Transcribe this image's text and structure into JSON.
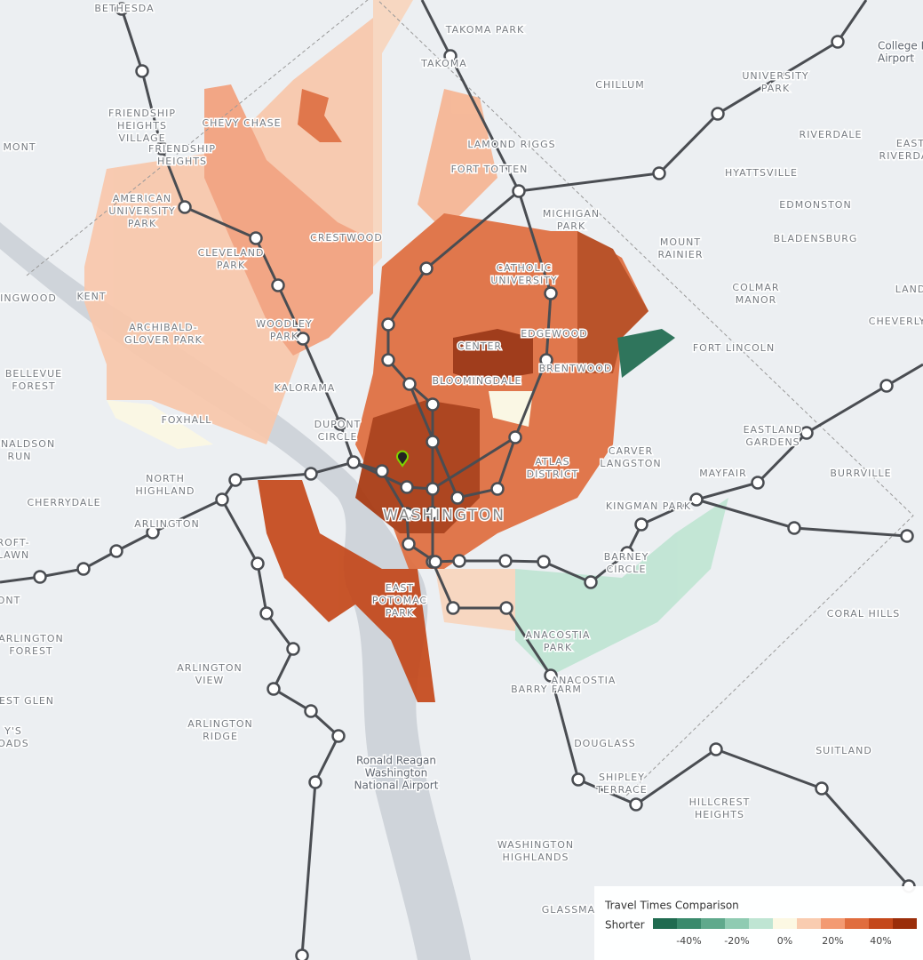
{
  "places": [
    [
      "BETHESDA"
    ],
    [
      "TAKOMA PARK"
    ],
    [
      "TAKOMA"
    ],
    [
      "CHILLUM"
    ],
    [
      "UNIVERSITY",
      "PARK"
    ],
    [
      "College Park",
      "Airport"
    ],
    [
      "FRIENDSHIP",
      "HEIGHTS",
      "VILLAGE"
    ],
    [
      "FRIENDSHIP",
      "HEIGHTS"
    ],
    [
      "CHEVY CHASE"
    ],
    [
      "LAMOND RIGGS"
    ],
    [
      "RIVERDALE"
    ],
    [
      "EAST",
      "RIVERDALE"
    ],
    [
      "MONT"
    ],
    [
      "FORT TOTTEN"
    ],
    [
      "HYATTSVILLE"
    ],
    [
      "AMERICAN",
      "UNIVERSITY",
      "PARK"
    ],
    [
      "MICHIGAN",
      "PARK"
    ],
    [
      "EDMONSTON"
    ],
    [
      "CRESTWOOD"
    ],
    [
      "BLADENSBURG"
    ],
    [
      "MOUNT",
      "RAINIER"
    ],
    [
      "CLEVELAND",
      "PARK"
    ],
    [
      "CATHOLIC",
      "UNIVERSITY"
    ],
    [
      "KENT"
    ],
    [
      "INGWOOD"
    ],
    [
      "COLMAR",
      "MANOR"
    ],
    [
      "LAND"
    ],
    [
      "ARCHIBALD-",
      "GLOVER PARK"
    ],
    [
      "WOODLEY",
      "PARK"
    ],
    [
      "EDGEWOOD"
    ],
    [
      "CHEVERLY"
    ],
    [
      "FORT LINCOLN"
    ],
    [
      "CENTER"
    ],
    [
      "BRENTWOOD"
    ],
    [
      "BELLEVUE",
      "FOREST"
    ],
    [
      "BLOOMINGDALE"
    ],
    [
      "KALORAMA"
    ],
    [
      "FOXHALL"
    ],
    [
      "DUPONT",
      "CIRCLE"
    ],
    [
      "EASTLAND",
      "GARDENS"
    ],
    [
      "DONALDSON",
      "RUN"
    ],
    [
      "CARVER",
      "LANGSTON"
    ],
    [
      "ATLAS",
      "DISTRICT"
    ],
    [
      "NORTH",
      "HIGHLAND"
    ],
    [
      "MAYFAIR"
    ],
    [
      "BURRVILLE"
    ],
    [
      "CHERRYDALE"
    ],
    [
      "KINGMAN PARK"
    ],
    [
      "WASHINGTON"
    ],
    [
      "ARLINGTON"
    ],
    [
      "ROFT-",
      "LAWN"
    ],
    [
      "BARNEY",
      "CIRCLE"
    ],
    [
      "ONT"
    ],
    [
      "EAST",
      "POTOMAC",
      "PARK"
    ],
    [
      "CORAL HILLS"
    ],
    [
      "ANACOSTIA",
      "PARK"
    ],
    [
      "ARLINGTON",
      "FOREST"
    ],
    [
      "ARLINGTON",
      "VIEW"
    ],
    [
      "ANACOSTIA"
    ],
    [
      "BARRY FARM"
    ],
    [
      "EST GLEN"
    ],
    [
      "Y'S",
      "OADS"
    ],
    [
      "ARLINGTON",
      "RIDGE"
    ],
    [
      "DOUGLASS"
    ],
    [
      "SUITLAND"
    ],
    [
      "Ronald Reagan",
      "Washington",
      "National Airport"
    ],
    [
      "SHIPLEY",
      "TERRACE"
    ],
    [
      "HILLCREST",
      "HEIGHTS"
    ],
    [
      "WASHINGTON",
      "HIGHLANDS"
    ],
    [
      "GLASSMA"
    ]
  ],
  "legend": {
    "title": "Travel Times Comparison",
    "start_label": "Shorter",
    "colors": [
      "#1f6b50",
      "#3a8a6c",
      "#5fa98c",
      "#8fcbb2",
      "#bfe5d3",
      "#fcf8e3",
      "#f9ccb0",
      "#f39a72",
      "#e06d3e",
      "#c4481a",
      "#9a2e0a"
    ],
    "ticks": [
      {
        "value": -40,
        "label": "-40%"
      },
      {
        "value": -20,
        "label": "-20%"
      },
      {
        "value": 0,
        "label": "0%"
      },
      {
        "value": 20,
        "label": "20%"
      },
      {
        "value": 40,
        "label": "40%"
      }
    ]
  }
}
